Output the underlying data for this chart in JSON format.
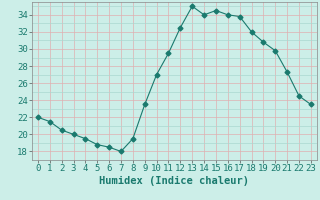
{
  "x": [
    0,
    1,
    2,
    3,
    4,
    5,
    6,
    7,
    8,
    9,
    10,
    11,
    12,
    13,
    14,
    15,
    16,
    17,
    18,
    19,
    20,
    21,
    22,
    23
  ],
  "y": [
    22,
    21.5,
    20.5,
    20,
    19.5,
    18.8,
    18.5,
    18,
    19.5,
    23.5,
    27,
    29.5,
    32.5,
    35,
    34,
    34.5,
    34,
    33.8,
    32,
    30.8,
    29.8,
    27.3,
    24.5,
    23.5
  ],
  "line_color": "#1a7a6e",
  "marker": "D",
  "marker_size": 2.5,
  "bg_color": "#cceee8",
  "grid_minor_color": "#aad8d0",
  "grid_major_color": "#e0b0b0",
  "xlabel": "Humidex (Indice chaleur)",
  "xlim": [
    -0.5,
    23.5
  ],
  "ylim": [
    17,
    35.5
  ],
  "yticks": [
    18,
    20,
    22,
    24,
    26,
    28,
    30,
    32,
    34
  ],
  "xticks": [
    0,
    1,
    2,
    3,
    4,
    5,
    6,
    7,
    8,
    9,
    10,
    11,
    12,
    13,
    14,
    15,
    16,
    17,
    18,
    19,
    20,
    21,
    22,
    23
  ],
  "font_size": 6.5,
  "label_font_size": 7.5
}
